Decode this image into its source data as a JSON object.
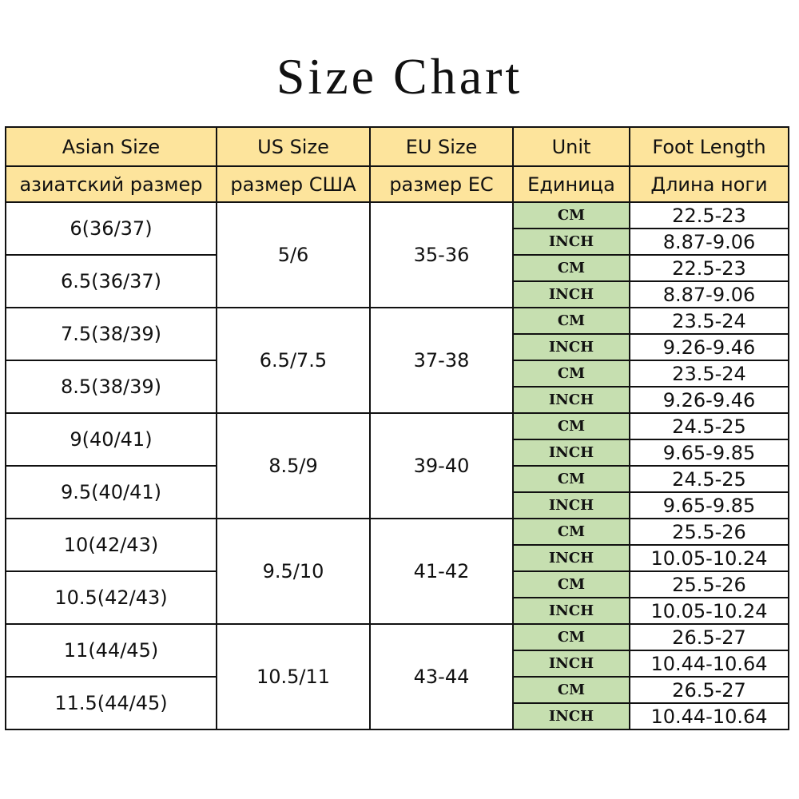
{
  "title": "Size Chart",
  "headers": [
    {
      "en": "Asian Size",
      "ru": "азиатский размер"
    },
    {
      "en": "US Size",
      "ru": "размер США"
    },
    {
      "en": "EU Size",
      "ru": "размер ЕС"
    },
    {
      "en": "Unit",
      "ru": "Единица"
    },
    {
      "en": "Foot Length",
      "ru": "Длина ноги"
    }
  ],
  "colors": {
    "header_bg": "#fde49c",
    "unit_bg": "#c6dfb0"
  },
  "groups": [
    {
      "us": "5/6",
      "eu": "35-36",
      "sizes": [
        {
          "asian": "6(36/37)",
          "cm": "22.5-23",
          "inch": "8.87-9.06"
        },
        {
          "asian": "6.5(36/37)",
          "cm": "22.5-23",
          "inch": "8.87-9.06"
        }
      ]
    },
    {
      "us": "6.5/7.5",
      "eu": "37-38",
      "sizes": [
        {
          "asian": "7.5(38/39)",
          "cm": "23.5-24",
          "inch": "9.26-9.46"
        },
        {
          "asian": "8.5(38/39)",
          "cm": "23.5-24",
          "inch": "9.26-9.46"
        }
      ]
    },
    {
      "us": "8.5/9",
      "eu": "39-40",
      "sizes": [
        {
          "asian": "9(40/41)",
          "cm": "24.5-25",
          "inch": "9.65-9.85"
        },
        {
          "asian": "9.5(40/41)",
          "cm": "24.5-25",
          "inch": "9.65-9.85"
        }
      ]
    },
    {
      "us": "9.5/10",
      "eu": "41-42",
      "sizes": [
        {
          "asian": "10(42/43)",
          "cm": "25.5-26",
          "inch": "10.05-10.24"
        },
        {
          "asian": "10.5(42/43)",
          "cm": "25.5-26",
          "inch": "10.05-10.24"
        }
      ]
    },
    {
      "us": "10.5/11",
      "eu": "43-44",
      "sizes": [
        {
          "asian": "11(44/45)",
          "cm": "26.5-27",
          "inch": "10.44-10.64"
        },
        {
          "asian": "11.5(44/45)",
          "cm": "26.5-27",
          "inch": "10.44-10.64"
        }
      ]
    }
  ],
  "units": {
    "cm": "CM",
    "inch": "INCH"
  }
}
